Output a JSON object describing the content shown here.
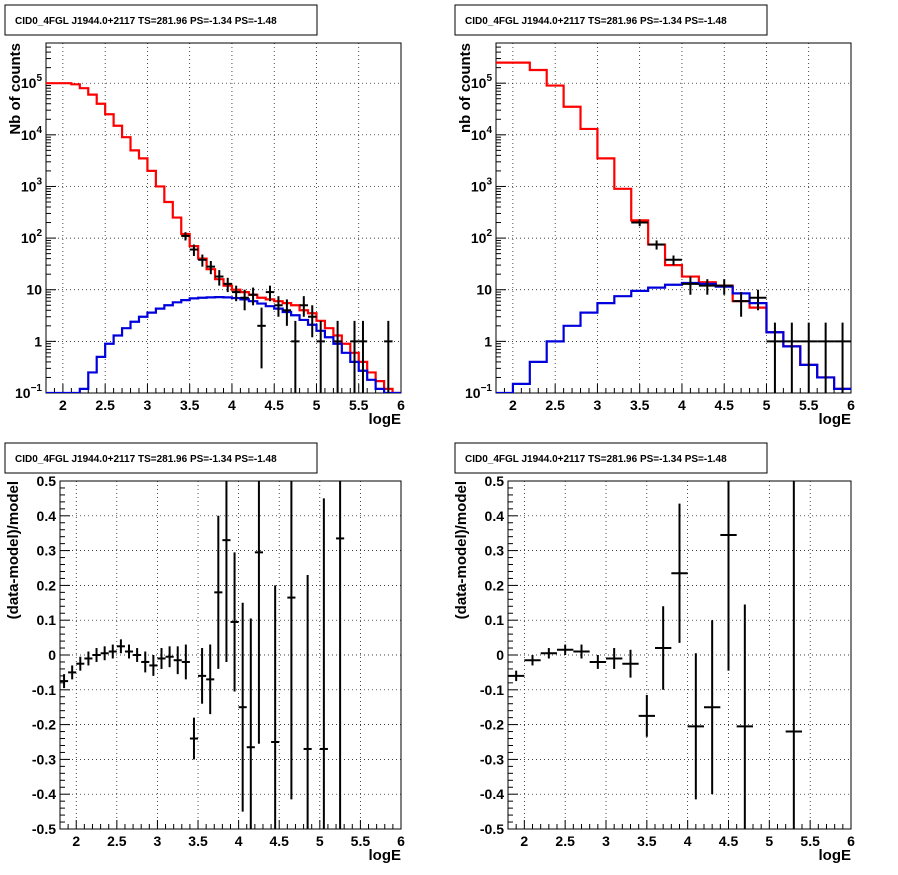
{
  "chart_data": [
    {
      "type": "line",
      "title": "CID0_4FGL J1944.0+2117 TS=281.96 PS=-1.34 PS=-1.48",
      "xlabel": "logE",
      "ylabel": "Nb of counts",
      "xlim": [
        1.8,
        6.0
      ],
      "ylim": [
        0.1,
        600000
      ],
      "yscale": "log",
      "grid": true,
      "x_ticks": [
        "2",
        "2.5",
        "3",
        "3.5",
        "4",
        "4.5",
        "5",
        "5.5",
        "6"
      ],
      "bin_width": 0.1,
      "series": [
        {
          "kind": "step",
          "color": "#ff0000",
          "bin_start": [
            1.8,
            1.9,
            2.0,
            2.1,
            2.2,
            2.3,
            2.4,
            2.5,
            2.6,
            2.7,
            2.8,
            2.9,
            3.0,
            3.1,
            3.2,
            3.3,
            3.4,
            3.5,
            3.6,
            3.7,
            3.8,
            3.9,
            4.0,
            4.1,
            4.2,
            4.3,
            4.4,
            4.5,
            4.6,
            4.7,
            4.8,
            4.9,
            5.0,
            5.1,
            5.2,
            5.3,
            5.4,
            5.5,
            5.6,
            5.7,
            5.8,
            5.9
          ],
          "values": [
            100000,
            100000,
            100000,
            95000,
            80000,
            60000,
            40000,
            25000,
            15000,
            9000,
            5000,
            3500,
            2000,
            1000,
            500,
            250,
            120,
            70,
            40,
            25,
            16,
            12,
            10,
            9,
            8,
            7,
            6.5,
            6,
            5.5,
            5,
            4,
            3.5,
            2.5,
            1.8,
            1.3,
            0.9,
            0.6,
            0.4,
            0.25,
            0.17,
            0.12,
            0.1
          ]
        },
        {
          "kind": "step",
          "color": "#0000dd",
          "bin_start": [
            1.8,
            1.9,
            2.0,
            2.1,
            2.2,
            2.3,
            2.4,
            2.5,
            2.6,
            2.7,
            2.8,
            2.9,
            3.0,
            3.1,
            3.2,
            3.3,
            3.4,
            3.5,
            3.6,
            3.7,
            3.8,
            3.9,
            4.0,
            4.1,
            4.2,
            4.3,
            4.4,
            4.5,
            4.6,
            4.7,
            4.8,
            4.9,
            5.0,
            5.1,
            5.2,
            5.3,
            5.4,
            5.5,
            5.6,
            5.7,
            5.8,
            5.9
          ],
          "values": [
            0.1,
            0.1,
            0.1,
            0.1,
            0.12,
            0.25,
            0.5,
            0.9,
            1.3,
            1.8,
            2.4,
            3.0,
            3.6,
            4.3,
            5.0,
            5.7,
            6.3,
            6.8,
            7.0,
            7.1,
            7.2,
            7.1,
            6.9,
            6.5,
            6.0,
            5.4,
            4.8,
            4.3,
            3.7,
            3.2,
            2.6,
            2.1,
            1.6,
            1.2,
            0.9,
            0.6,
            0.4,
            0.27,
            0.18,
            0.12,
            0.1,
            0.1
          ]
        },
        {
          "kind": "errorbar",
          "color": "#000000",
          "x": [
            3.45,
            3.55,
            3.65,
            3.75,
            3.85,
            3.95,
            4.05,
            4.15,
            4.25,
            4.35,
            4.45,
            4.55,
            4.65,
            4.75,
            4.85,
            4.95,
            5.05,
            5.25,
            5.45,
            5.55,
            5.85
          ],
          "y": [
            110,
            60,
            38,
            28,
            18,
            13,
            9,
            7,
            8,
            2,
            9,
            5,
            4,
            1,
            5,
            3,
            1,
            1,
            1,
            1,
            1
          ],
          "yerr_low": [
            20,
            15,
            10,
            8,
            6,
            4,
            3,
            3,
            3,
            1.7,
            3,
            2,
            2,
            0.9,
            2,
            1.8,
            0.9,
            0.9,
            0.9,
            0.9,
            0.9
          ],
          "yerr_high": [
            20,
            15,
            10,
            8,
            6,
            4,
            3,
            3,
            3,
            2.5,
            3,
            2.5,
            2.5,
            1.5,
            2.5,
            2,
            1.5,
            1.5,
            1.5,
            1.5,
            1.5
          ]
        }
      ]
    },
    {
      "type": "line",
      "title": "CID0_4FGL J1944.0+2117 TS=281.96 PS=-1.34 PS=-1.48",
      "xlabel": "logE",
      "ylabel": "nb of counts",
      "xlim": [
        1.8,
        6.0
      ],
      "ylim": [
        0.1,
        600000
      ],
      "yscale": "log",
      "grid": true,
      "x_ticks": [
        "2",
        "2.5",
        "3",
        "3.5",
        "4",
        "4.5",
        "5",
        "5.5",
        "6"
      ],
      "bin_width": 0.2,
      "series": [
        {
          "kind": "step",
          "color": "#ff0000",
          "bin_start": [
            1.8,
            2.0,
            2.2,
            2.4,
            2.6,
            2.8,
            3.0,
            3.2,
            3.4,
            3.6,
            3.8,
            4.0,
            4.2,
            4.4,
            4.6,
            4.8,
            5.0,
            5.2,
            5.4,
            5.6,
            5.8
          ],
          "values": [
            250000,
            250000,
            180000,
            90000,
            35000,
            13000,
            3500,
            900,
            220,
            75,
            30,
            18,
            14,
            12,
            6,
            4.5,
            1.5,
            0.8,
            0.35,
            0.2,
            0.12
          ]
        },
        {
          "kind": "step",
          "color": "#0000dd",
          "bin_start": [
            1.8,
            2.0,
            2.2,
            2.4,
            2.6,
            2.8,
            3.0,
            3.2,
            3.4,
            3.6,
            3.8,
            4.0,
            4.2,
            4.4,
            4.6,
            4.8,
            5.0,
            5.2,
            5.4,
            5.6,
            5.8
          ],
          "values": [
            0.1,
            0.15,
            0.4,
            1.0,
            2.0,
            3.6,
            5.5,
            7.5,
            9.5,
            11,
            12.5,
            13.5,
            13,
            11.5,
            8.5,
            5.5,
            1.5,
            0.8,
            0.35,
            0.2,
            0.12
          ]
        },
        {
          "kind": "errorbar",
          "color": "#000000",
          "x": [
            3.5,
            3.7,
            3.9,
            4.1,
            4.3,
            4.5,
            4.7,
            4.9,
            5.1,
            5.3,
            5.5,
            5.7,
            5.9
          ],
          "y": [
            200,
            75,
            38,
            13,
            12,
            12,
            6,
            7,
            1,
            1,
            1,
            1,
            1
          ],
          "yerr_low": [
            30,
            15,
            8,
            5,
            4,
            4,
            3,
            3,
            0.9,
            0.9,
            0.9,
            0.9,
            0.9
          ],
          "yerr_high": [
            30,
            15,
            8,
            5,
            4,
            4,
            3,
            3,
            1.3,
            1.3,
            1.3,
            1.3,
            1.3
          ]
        }
      ]
    },
    {
      "type": "scatter",
      "title": "CID0_4FGL J1944.0+2117 TS=281.96 PS=-1.34 PS=-1.48",
      "xlabel": "logE",
      "ylabel": "(data-model)/model",
      "xlim": [
        1.8,
        6.0
      ],
      "ylim": [
        -0.5,
        0.5
      ],
      "grid": true,
      "x_ticks": [
        "2",
        "2.5",
        "3",
        "3.5",
        "4",
        "4.5",
        "5",
        "5.5",
        "6"
      ],
      "y_ticks": [
        "-0.5",
        "-0.4",
        "-0.3",
        "-0.2",
        "-0.1",
        "0",
        "0.1",
        "0.2",
        "0.3",
        "0.4",
        "0.5"
      ],
      "bin_width": 0.1,
      "points": {
        "x": [
          1.85,
          1.95,
          2.05,
          2.15,
          2.25,
          2.35,
          2.45,
          2.55,
          2.65,
          2.75,
          2.85,
          2.95,
          3.05,
          3.15,
          3.25,
          3.35,
          3.45,
          3.55,
          3.65,
          3.75,
          3.85,
          3.95,
          4.05,
          4.15,
          4.25,
          4.45,
          4.65,
          4.85,
          5.05,
          5.25
        ],
        "y": [
          -0.075,
          -0.05,
          -0.025,
          -0.01,
          0.0,
          0.005,
          0.01,
          0.025,
          0.01,
          0.0,
          -0.02,
          -0.03,
          -0.01,
          -0.005,
          -0.015,
          -0.02,
          -0.24,
          -0.06,
          -0.07,
          0.18,
          0.33,
          0.095,
          -0.15,
          -0.265,
          0.295,
          -0.25,
          0.165,
          -0.27,
          -0.27,
          0.335
        ],
        "yerr": [
          0.02,
          0.02,
          0.02,
          0.02,
          0.02,
          0.02,
          0.02,
          0.02,
          0.02,
          0.02,
          0.03,
          0.03,
          0.03,
          0.03,
          0.04,
          0.05,
          0.06,
          0.08,
          0.1,
          0.22,
          0.35,
          0.2,
          0.3,
          0.37,
          0.55,
          0.45,
          0.58,
          0.5,
          0.72,
          0.85
        ]
      }
    },
    {
      "type": "scatter",
      "title": "CID0_4FGL J1944.0+2117 TS=281.96 PS=-1.34 PS=-1.48",
      "xlabel": "logE",
      "ylabel": "(data-model)/model",
      "xlim": [
        1.8,
        6.0
      ],
      "ylim": [
        -0.5,
        0.5
      ],
      "grid": true,
      "x_ticks": [
        "2",
        "2.5",
        "3",
        "3.5",
        "4",
        "4.5",
        "5",
        "5.5",
        "6"
      ],
      "y_ticks": [
        "-0.5",
        "-0.4",
        "-0.3",
        "-0.2",
        "-0.1",
        "0",
        "0.1",
        "0.2",
        "0.3",
        "0.4",
        "0.5"
      ],
      "bin_width": 0.2,
      "points": {
        "x": [
          1.9,
          2.1,
          2.3,
          2.5,
          2.7,
          2.9,
          3.1,
          3.3,
          3.5,
          3.7,
          3.9,
          4.1,
          4.3,
          4.5,
          4.7,
          5.3
        ],
        "y": [
          -0.06,
          -0.015,
          0.005,
          0.015,
          0.01,
          -0.02,
          -0.01,
          -0.025,
          -0.175,
          0.02,
          0.235,
          -0.205,
          -0.15,
          0.345,
          -0.205,
          -0.22
        ],
        "yerr": [
          0.015,
          0.015,
          0.015,
          0.015,
          0.02,
          0.02,
          0.03,
          0.04,
          0.06,
          0.12,
          0.2,
          0.21,
          0.25,
          0.39,
          0.35,
          0.72
        ]
      }
    }
  ]
}
